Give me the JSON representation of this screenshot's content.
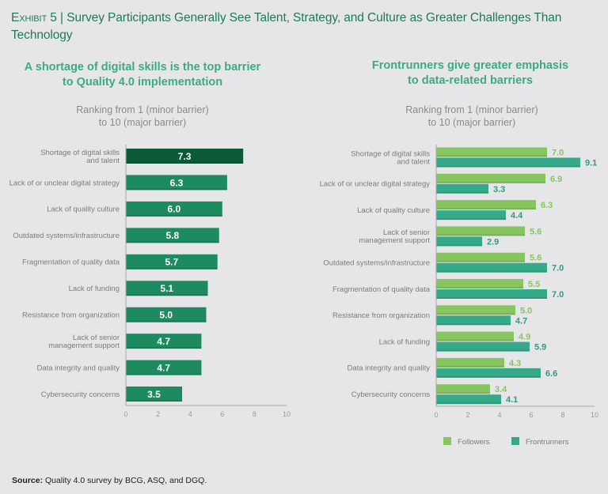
{
  "exhibit": {
    "label": "Exhibit 5",
    "separator": "|",
    "title": "Survey Participants Generally See Talent, Strategy, and Culture as Greater Challenges Than Technology"
  },
  "source": {
    "label": "Source:",
    "text": "Quality 4.0 survey by BCG, ASQ, and DGQ."
  },
  "chart_data": [
    {
      "type": "bar",
      "orientation": "horizontal",
      "title": "A shortage of digital skills is the top barrier to Quality 4.0 implementation",
      "title_lines": [
        "A shortage of digital skills is the top barrier",
        "to Quality 4.0 implementation"
      ],
      "subtitle_lines": [
        "Ranking from 1 (minor barrier)",
        "to 10 (major barrier)"
      ],
      "categories": [
        [
          "Shortage of digital skills",
          "and talent"
        ],
        [
          "Lack of or unclear digital strategy"
        ],
        [
          "Lack of quality culture"
        ],
        [
          "Outdated systems/infrastructure"
        ],
        [
          "Fragmentation of quality data"
        ],
        [
          "Lack of funding"
        ],
        [
          "Resistance from organization"
        ],
        [
          "Lack of senior",
          "management support"
        ],
        [
          "Data integrity and quality"
        ],
        [
          "Cybersecurity concerns"
        ]
      ],
      "values": [
        7.3,
        6.3,
        6.0,
        5.8,
        5.7,
        5.1,
        5.0,
        4.7,
        4.7,
        3.5
      ],
      "value_labels": [
        "7.3",
        "6.3",
        "6.0",
        "5.8",
        "5.7",
        "5.1",
        "5.0",
        "4.7",
        "4.7",
        "3.5"
      ],
      "highlight_index": 0,
      "colors": {
        "bar": "#1e8a5f",
        "highlight": "#0b5a36"
      },
      "xlim": [
        0,
        10
      ],
      "xticks": [
        "0",
        "2",
        "4",
        "6",
        "8",
        "10"
      ],
      "xlabel": "",
      "ylabel": "",
      "grid": false
    },
    {
      "type": "bar",
      "orientation": "horizontal",
      "title": "Frontrunners give greater emphasis to data-related barriers",
      "title_lines": [
        "Frontrunners give greater emphasis",
        "to data-related barriers"
      ],
      "subtitle_lines": [
        "Ranking from 1 (minor barrier)",
        "to 10 (major barrier)"
      ],
      "categories": [
        [
          "Shortage of digital skills",
          "and talent"
        ],
        [
          "Lack of or unclear digital strategy"
        ],
        [
          "Lack of quality culture"
        ],
        [
          "Lack of senior",
          "management support"
        ],
        [
          "Outdated systems/infrastructure"
        ],
        [
          "Fragmentation of quality data"
        ],
        [
          "Resistance from organization"
        ],
        [
          "Lack of funding"
        ],
        [
          "Data integrity and quality"
        ],
        [
          "Cybersecurity concerns"
        ]
      ],
      "series": [
        {
          "name": "Followers",
          "color": "#86c55f",
          "values": [
            7.0,
            6.9,
            6.3,
            5.6,
            5.6,
            5.5,
            5.0,
            4.9,
            4.3,
            3.4
          ],
          "value_labels": [
            "7.0",
            "6.9",
            "6.3",
            "5.6",
            "5.6",
            "5.5",
            "5.0",
            "4.9",
            "4.3",
            "3.4"
          ]
        },
        {
          "name": "Frontrunners",
          "color": "#36a98a",
          "values": [
            9.1,
            3.3,
            4.4,
            2.9,
            7.0,
            7.0,
            4.7,
            5.9,
            6.6,
            4.1
          ],
          "value_labels": [
            "9.1",
            "3.3",
            "4.4",
            "2.9",
            "7.0",
            "7.0",
            "4.7",
            "5.9",
            "6.6",
            "4.1"
          ]
        }
      ],
      "legend": {
        "entries": [
          "Followers",
          "Frontrunners"
        ],
        "placement": "bottom"
      },
      "xlim": [
        0,
        10
      ],
      "xticks": [
        "0",
        "2",
        "4",
        "6",
        "8",
        "10"
      ],
      "xlabel": "",
      "ylabel": "",
      "grid": false
    }
  ]
}
